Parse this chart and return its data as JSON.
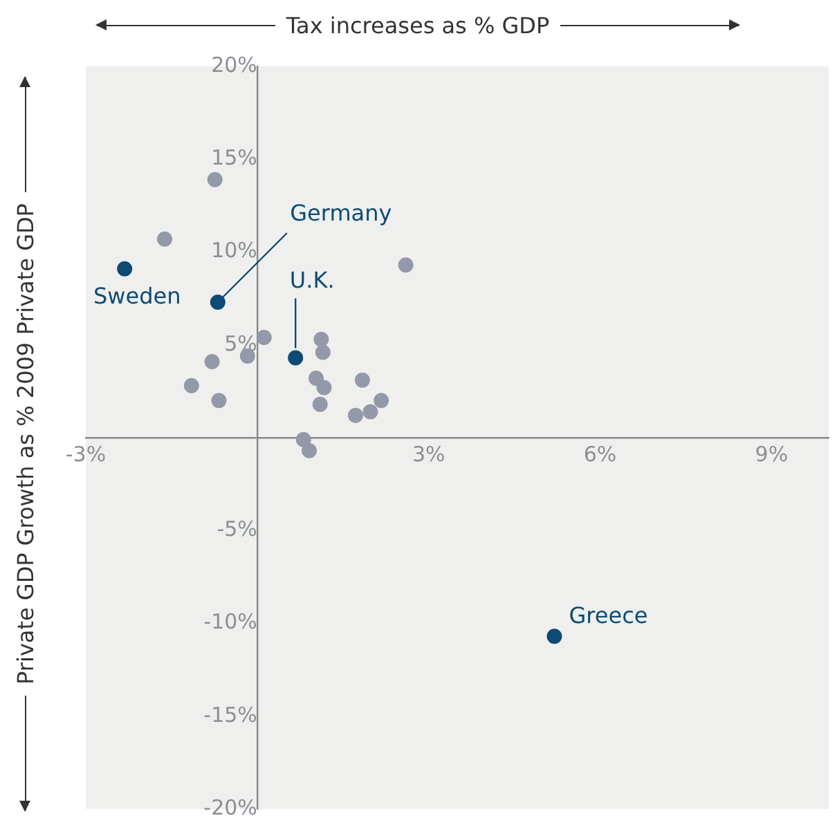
{
  "chart_data": {
    "type": "scatter",
    "xlabel": "Tax increases as % GDP",
    "ylabel": "Private GDP Growth as % 2009 Private GDP",
    "xlim": [
      -3,
      10
    ],
    "xticks": [
      {
        "value": -3,
        "label": "-3%"
      },
      {
        "value": 3,
        "label": "3%"
      },
      {
        "value": 6,
        "label": "6%"
      },
      {
        "value": 9,
        "label": "9%"
      }
    ],
    "ylim": [
      -20,
      20
    ],
    "yticks": [
      {
        "value": -20,
        "label": "-20%"
      },
      {
        "value": -15,
        "label": "-15%"
      },
      {
        "value": -10,
        "label": "-10%"
      },
      {
        "value": -5,
        "label": "-5%"
      },
      {
        "value": 5,
        "label": "5%"
      },
      {
        "value": 10,
        "label": "10%"
      },
      {
        "value": 15,
        "label": "15%"
      },
      {
        "value": 20,
        "label": "20%"
      }
    ],
    "grid": false,
    "legend": false,
    "marker": "circle",
    "series": [
      {
        "color": "#9399a8",
        "x": [
          -0.74,
          -1.62,
          2.6,
          0.12,
          1.12,
          -0.17,
          1.15,
          -0.79,
          1.03,
          1.84,
          -1.15,
          1.17,
          -0.67,
          2.17,
          1.1,
          1.72,
          1.98,
          0.81,
          0.91
        ],
        "values": [
          13.9,
          10.7,
          9.3,
          5.4,
          5.3,
          4.4,
          4.6,
          4.1,
          3.2,
          3.1,
          2.8,
          2.7,
          2.0,
          2.0,
          1.8,
          1.2,
          1.4,
          -0.1,
          -0.7
        ]
      },
      {
        "color": "#0d4a75",
        "x": [
          -2.32,
          -0.69,
          0.67,
          5.2
        ],
        "values": [
          9.1,
          7.3,
          4.3,
          -10.7
        ]
      }
    ],
    "annotations": [
      {
        "text": "Sweden",
        "x": -2.32,
        "y": 9.1
      },
      {
        "text": "Germany",
        "x": -0.69,
        "y": 7.3
      },
      {
        "text": "U.K.",
        "x": 0.67,
        "y": 4.3
      },
      {
        "text": "Greece",
        "x": 5.2,
        "y": -10.7
      }
    ]
  }
}
